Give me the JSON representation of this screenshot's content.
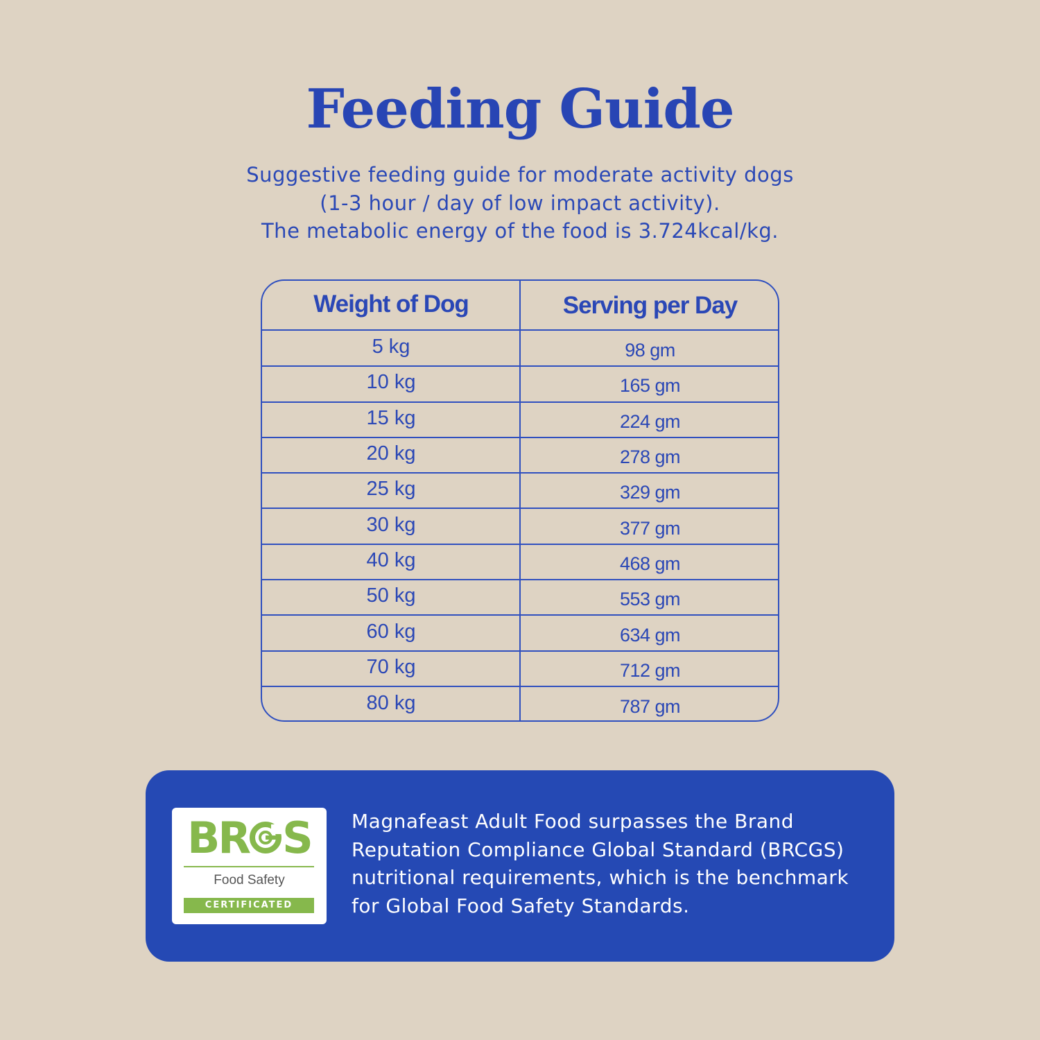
{
  "page": {
    "title": "Feeding Guide",
    "subtitle_lines": [
      "Suggestive feeding guide for moderate activity dogs",
      "(1-3 hour / day of low impact activity).",
      "The metabolic energy of the food is 3.724kcal/kg."
    ]
  },
  "table": {
    "headers": [
      "Weight of Dog",
      "Serving per Day"
    ],
    "rows": [
      {
        "weight": "5 kg",
        "serving": "98 gm"
      },
      {
        "weight": "10 kg",
        "serving": "165 gm"
      },
      {
        "weight": "15 kg",
        "serving": "224 gm"
      },
      {
        "weight": "20 kg",
        "serving": "278 gm"
      },
      {
        "weight": "25 kg",
        "serving": "329 gm"
      },
      {
        "weight": "30 kg",
        "serving": "377 gm"
      },
      {
        "weight": "40 kg",
        "serving": "468 gm"
      },
      {
        "weight": "50 kg",
        "serving": "553 gm"
      },
      {
        "weight": "60 kg",
        "serving": "634 gm"
      },
      {
        "weight": "70 kg",
        "serving": "712 gm"
      },
      {
        "weight": "80 kg",
        "serving": "787 gm"
      }
    ]
  },
  "certification": {
    "logo": {
      "brand_left": "BR",
      "brand_right": "S",
      "brand_full": "BRCGS",
      "subtitle": "Food Safety",
      "badge": "CERTIFICATED"
    },
    "text_lines": [
      "Magnafeast Adult Food surpasses the Brand",
      "Reputation Compliance Global Standard (BRCGS)",
      "nutritional requirements, which is the benchmark",
      "for Global Food Safety Standards."
    ]
  },
  "colors": {
    "background": "#ded3c3",
    "primary_blue": "#2549b4",
    "brcgs_green": "#86b84c"
  }
}
